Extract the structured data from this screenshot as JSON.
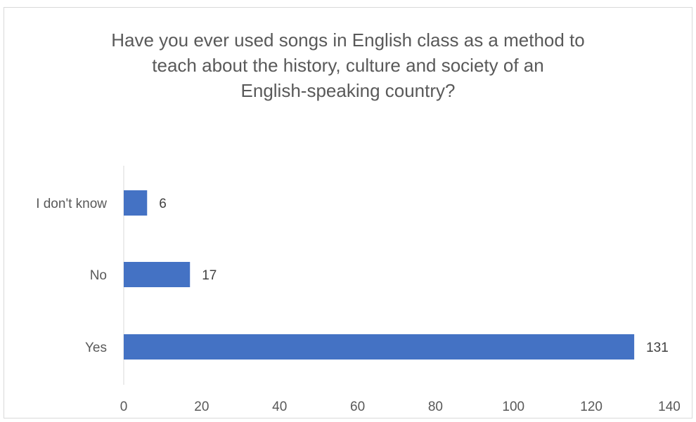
{
  "chart_data": {
    "type": "bar",
    "orientation": "horizontal",
    "title": "Have you ever used songs in English class as a method to\nteach about the history, culture and society of an\nEnglish-speaking country?",
    "xlabel": "",
    "ylabel": "",
    "categories": [
      "I don't know",
      "No",
      "Yes"
    ],
    "values": [
      6,
      17,
      131
    ],
    "xlim": [
      0,
      140
    ],
    "ticks": [
      0,
      20,
      40,
      60,
      80,
      100,
      120,
      140
    ],
    "bar_color": "#4472c4",
    "grid": false,
    "legend": "none"
  }
}
